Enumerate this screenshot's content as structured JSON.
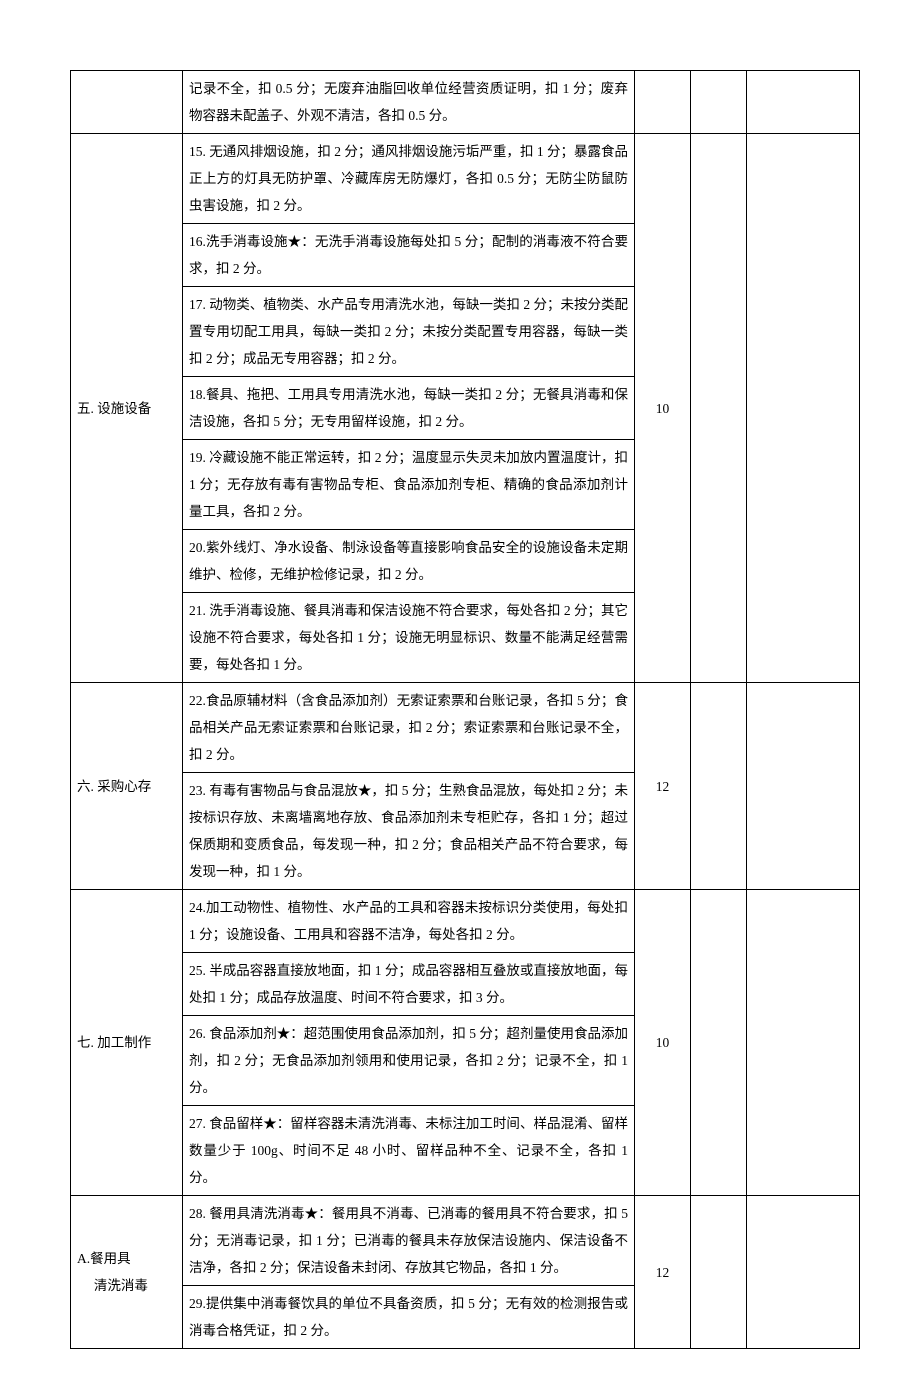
{
  "table": {
    "columns": {
      "category_width": 112,
      "desc_width": 452,
      "score_width": 56,
      "blank1_width": 56
    },
    "rows": [
      {
        "category": "",
        "category_rowspan": 1,
        "descs": [
          "记录不全，扣 0.5 分；无废弃油脂回收单位经营资质证明，扣 1 分；废弃物容器未配盖子、外观不清洁，各扣 0.5 分。"
        ],
        "score": "",
        "score_rowspan": 1
      },
      {
        "category": "五. 设施设备",
        "category_rowspan": 7,
        "descs": [
          "15. 无通风排烟设施，扣 2 分；通风排烟设施污垢严重，扣 1 分；暴露食品正上方的灯具无防护罩、冷藏库房无防爆灯，各扣 0.5 分；无防尘防鼠防虫害设施，扣 2 分。",
          "16.洗手消毒设施★：无洗手消毒设施每处扣 5 分；配制的消毒液不符合要求，扣 2 分。",
          "17. 动物类、植物类、水产品专用清洗水池，每缺一类扣 2 分；未按分类配置专用切配工用具，每缺一类扣 2 分；未按分类配置专用容器，每缺一类扣 2 分；成品无专用容器；扣 2 分。",
          "18.餐具、拖把、工用具专用清洗水池，每缺一类扣 2 分；无餐具消毒和保洁设施，各扣 5 分；无专用留样设施，扣 2 分。",
          "19. 冷藏设施不能正常运转，扣 2 分；温度显示失灵未加放内置温度计，扣 1 分；无存放有毒有害物品专柜、食品添加剂专柜、精确的食品添加剂计量工具，各扣 2 分。",
          "20.紫外线灯、净水设备、制泳设备等直接影响食品安全的设施设备未定期维护、检修，无维护检修记录，扣 2 分。",
          "21. 洗手消毒设施、餐具消毒和保洁设施不符合要求，每处各扣 2 分；其它设施不符合要求，每处各扣 1 分；设施无明显标识、数量不能满足经营需要，每处各扣 1 分。"
        ],
        "score": "10",
        "score_rowspan": 7
      },
      {
        "category": "六. 采购心存",
        "category_rowspan": 2,
        "descs": [
          "22.食品原辅材料（含食品添加剂）无索证索票和台账记录，各扣 5 分；食品相关产品无索证索票和台账记录，扣 2 分；索证索票和台账记录不全，扣 2 分。",
          "23. 有毒有害物品与食品混放★，扣 5 分；生熟食品混放，每处扣 2 分；未按标识存放、未离墙离地存放、食品添加剂未专柜贮存，各扣 1 分；超过保质期和变质食品，每发现一种，扣 2 分；食品相关产品不符合要求，每发现一种，扣 1 分。"
        ],
        "score": "12",
        "score_rowspan": 2
      },
      {
        "category": "七. 加工制作",
        "category_rowspan": 4,
        "descs": [
          "24.加工动物性、植物性、水产品的工具和容器未按标识分类使用，每处扣 1 分；设施设备、工用具和容器不洁净，每处各扣 2 分。",
          "25. 半成品容器直接放地面，扣 1 分；成品容器相互叠放或直接放地面，每处扣 1 分；成品存放温度、时间不符合要求，扣 3 分。",
          "26. 食品添加剂★：超范围使用食品添加剂，扣 5 分；超剂量使用食品添加剂，扣 2 分；无食品添加剂领用和使用记录，各扣 2 分；记录不全，扣 1 分。",
          "27. 食品留样★：留样容器未清洗消毒、未标注加工时间、样品混淆、留样数量少于 100g、时间不足 48 小时、留样品种不全、记录不全，各扣 1 分。"
        ],
        "score": "10",
        "score_rowspan": 4
      },
      {
        "category": "A.餐用具\n　 清洗消毒",
        "category_rowspan": 2,
        "descs": [
          "28. 餐用具清洗消毒★：餐用具不消毒、已消毒的餐用具不符合要求，扣 5 分；无消毒记录，扣 1 分；已消毒的餐具未存放保洁设施内、保洁设备不洁净，各扣 2 分；保洁设备未封闭、存放其它物品，各扣 1 分。",
          "29.提供集中消毒餐饮具的单位不具备资质，扣 5 分；无有效的检测报告或消毒合格凭证，扣 2 分。"
        ],
        "score": "12",
        "score_rowspan": 2
      }
    ]
  }
}
